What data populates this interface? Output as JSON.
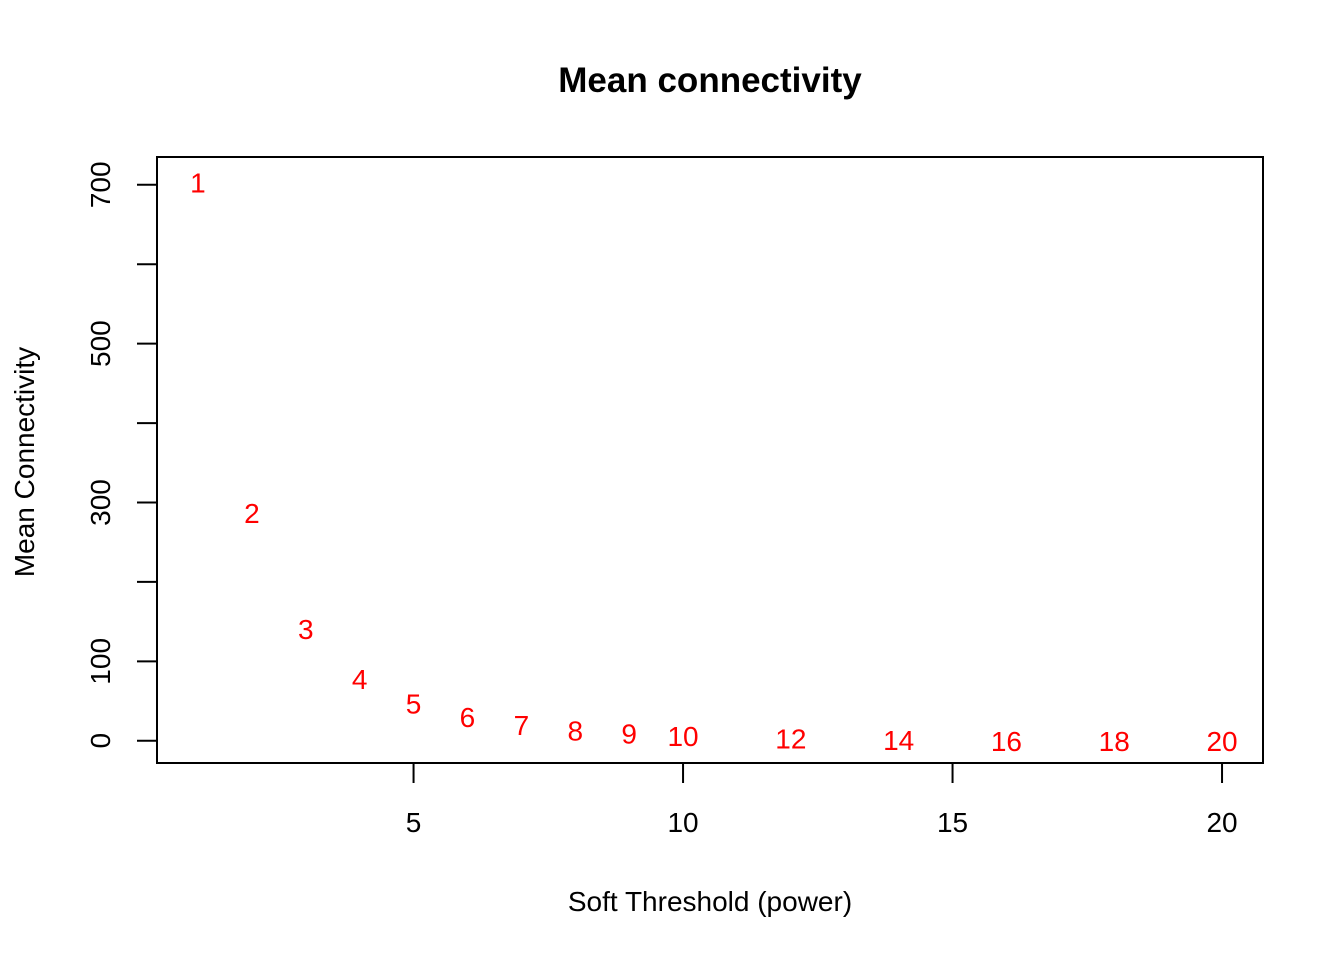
{
  "chart_data": {
    "type": "scatter",
    "title": "Mean connectivity",
    "xlabel": "Soft Threshold (power)",
    "ylabel": "Mean Connectivity",
    "xlim": [
      0.24,
      20.76
    ],
    "ylim": [
      -28,
      735
    ],
    "x_ticks": [
      5,
      10,
      15,
      20
    ],
    "y_ticks": [
      0,
      100,
      200,
      300,
      400,
      500,
      600,
      700
    ],
    "y_tick_labels": [
      "0",
      "100",
      "",
      "300",
      "",
      "500",
      "",
      "700"
    ],
    "point_color": "#ff0000",
    "points": [
      {
        "x": 1,
        "y": 703,
        "label": "1"
      },
      {
        "x": 2,
        "y": 287,
        "label": "2"
      },
      {
        "x": 3,
        "y": 141,
        "label": "3"
      },
      {
        "x": 4,
        "y": 78,
        "label": "4"
      },
      {
        "x": 5,
        "y": 47,
        "label": "5"
      },
      {
        "x": 6,
        "y": 30,
        "label": "6"
      },
      {
        "x": 7,
        "y": 20,
        "label": "7"
      },
      {
        "x": 8,
        "y": 13,
        "label": "8"
      },
      {
        "x": 9,
        "y": 9,
        "label": "9"
      },
      {
        "x": 10,
        "y": 6,
        "label": "10"
      },
      {
        "x": 12,
        "y": 3,
        "label": "12"
      },
      {
        "x": 14,
        "y": 1,
        "label": "14"
      },
      {
        "x": 16,
        "y": 0,
        "label": "16"
      },
      {
        "x": 18,
        "y": 0,
        "label": "18"
      },
      {
        "x": 20,
        "y": 0,
        "label": "20"
      }
    ]
  }
}
